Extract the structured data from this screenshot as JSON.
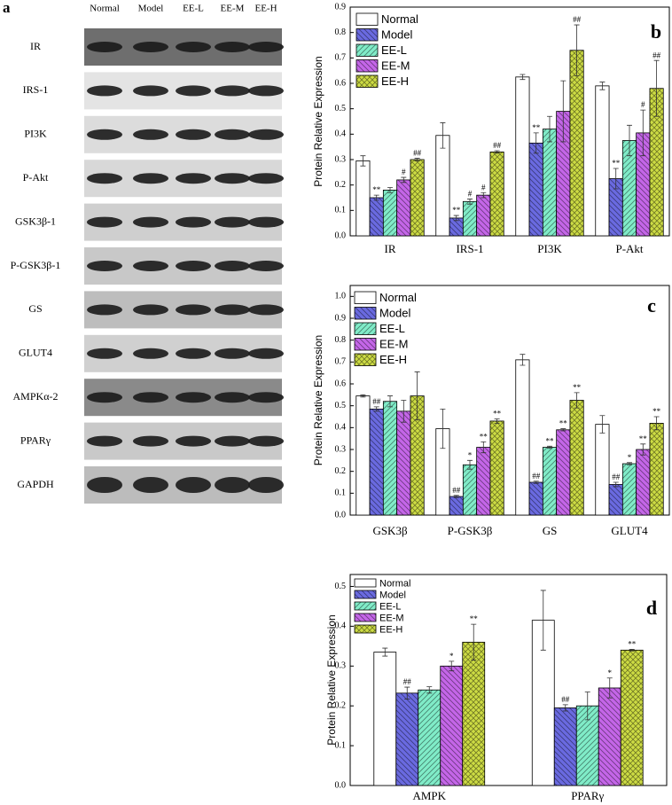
{
  "blot": {
    "label": "a",
    "lanes": [
      "Normal",
      "Model",
      "EE-L",
      "EE-M",
      "EE-H"
    ],
    "rows": [
      "IR",
      "IRS-1",
      "PI3K",
      "P-Akt",
      "GSK3β-1",
      "P-GSK3β-1",
      "GS",
      "GLUT4",
      "AMPKα-2",
      "PPARγ",
      "GAPDH"
    ]
  },
  "chart_data": [
    {
      "type": "bar",
      "panel_label": "b",
      "ylabel": "Protein Relative Expression",
      "legend": "upper left",
      "categories": [
        "IR",
        "IRS-1",
        "PI3K",
        "P-Akt"
      ],
      "ylim": [
        0,
        0.9
      ],
      "yticks": [
        {
          "value": 0,
          "label": "0.0"
        },
        0.1,
        0.2,
        0.3,
        0.4,
        0.5,
        0.6,
        0.7,
        0.8,
        0.9
      ],
      "series": [
        {
          "name": "Normal",
          "color": "#ffffff",
          "hatch": "none",
          "values": [
            0.295,
            0.395,
            0.625,
            0.59
          ],
          "errors": [
            0.02,
            0.05,
            0.01,
            0.015
          ]
        },
        {
          "name": "Model",
          "color": "#6a6ae0",
          "hatch": "back",
          "values": [
            0.15,
            0.07,
            0.365,
            0.225
          ],
          "errors": [
            0.01,
            0.01,
            0.04,
            0.04
          ],
          "annotations": [
            "**",
            "**",
            "**",
            "**"
          ]
        },
        {
          "name": "EE-L",
          "color": "#80ecc8",
          "hatch": "forward",
          "values": [
            0.18,
            0.135,
            0.42,
            0.375
          ],
          "errors": [
            0.01,
            0.01,
            0.05,
            0.06
          ],
          "annotations": [
            null,
            "#",
            null,
            null
          ]
        },
        {
          "name": "EE-M",
          "color": "#c466e8",
          "hatch": "back",
          "values": [
            0.22,
            0.16,
            0.49,
            0.405
          ],
          "errors": [
            0.01,
            0.01,
            0.12,
            0.09
          ],
          "annotations": [
            "#",
            "#",
            null,
            "#"
          ]
        },
        {
          "name": "EE-H",
          "color": "#cddc44",
          "hatch": "cross",
          "values": [
            0.3,
            0.33,
            0.73,
            0.58
          ],
          "errors": [
            0.005,
            0.005,
            0.1,
            0.11
          ],
          "annotations": [
            "##",
            "##",
            "##",
            "##"
          ]
        }
      ]
    },
    {
      "type": "bar",
      "panel_label": "c",
      "ylabel": "Protein Relative Expression",
      "legend": "upper left",
      "categories": [
        "GSK3β",
        "P-GSK3β",
        "GS",
        "GLUT4"
      ],
      "ylim": [
        0,
        1.05
      ],
      "yticks": [
        {
          "value": 0,
          "label": "0.0"
        },
        0.1,
        0.2,
        0.3,
        0.4,
        0.5,
        0.6,
        0.7,
        0.8,
        0.9,
        {
          "value": 1,
          "label": "1.0"
        }
      ],
      "series": [
        {
          "name": "Normal",
          "color": "#ffffff",
          "hatch": "none",
          "values": [
            0.545,
            0.395,
            0.71,
            0.415
          ],
          "errors": [
            0.005,
            0.09,
            0.025,
            0.04
          ]
        },
        {
          "name": "Model",
          "color": "#6a6ae0",
          "hatch": "back",
          "values": [
            0.485,
            0.085,
            0.15,
            0.14
          ],
          "errors": [
            0.01,
            0.005,
            0.005,
            0.01
          ],
          "annotations": [
            "##",
            "##",
            "##",
            "##"
          ]
        },
        {
          "name": "EE-L",
          "color": "#80ecc8",
          "hatch": "forward",
          "values": [
            0.52,
            0.23,
            0.31,
            0.235
          ],
          "errors": [
            0.025,
            0.02,
            0.005,
            0.005
          ],
          "annotations": [
            null,
            "*",
            "**",
            "*"
          ]
        },
        {
          "name": "EE-M",
          "color": "#c466e8",
          "hatch": "back",
          "values": [
            0.475,
            0.31,
            0.39,
            0.3
          ],
          "errors": [
            0.05,
            0.025,
            0.005,
            0.025
          ],
          "annotations": [
            null,
            "**",
            "**",
            "**"
          ]
        },
        {
          "name": "EE-H",
          "color": "#cddc44",
          "hatch": "cross",
          "values": [
            0.545,
            0.43,
            0.525,
            0.42
          ],
          "errors": [
            0.11,
            0.01,
            0.035,
            0.03
          ],
          "annotations": [
            null,
            "**",
            "**",
            "**"
          ]
        }
      ]
    },
    {
      "type": "bar",
      "panel_label": "d",
      "ylabel": "Protein Relative Expression",
      "legend": "upper left",
      "categories": [
        "AMPK",
        "PPARγ"
      ],
      "ylim": [
        0,
        0.53
      ],
      "yticks": [
        {
          "value": 0,
          "label": "0.0"
        },
        0.1,
        0.2,
        0.3,
        0.4,
        0.5
      ],
      "series": [
        {
          "name": "Normal",
          "color": "#ffffff",
          "hatch": "none",
          "values": [
            0.335,
            0.415
          ],
          "errors": [
            0.01,
            0.075
          ]
        },
        {
          "name": "Model",
          "color": "#6a6ae0",
          "hatch": "back",
          "values": [
            0.232,
            0.195
          ],
          "errors": [
            0.015,
            0.008
          ],
          "annotations": [
            "##",
            "##"
          ]
        },
        {
          "name": "EE-L",
          "color": "#80ecc8",
          "hatch": "forward",
          "values": [
            0.24,
            0.2
          ],
          "errors": [
            0.008,
            0.035
          ]
        },
        {
          "name": "EE-M",
          "color": "#c466e8",
          "hatch": "back",
          "values": [
            0.3,
            0.245
          ],
          "errors": [
            0.012,
            0.025
          ],
          "annotations": [
            "*",
            "*"
          ]
        },
        {
          "name": "EE-H",
          "color": "#cddc44",
          "hatch": "cross",
          "values": [
            0.36,
            0.34
          ],
          "errors": [
            0.045,
            0.002
          ],
          "annotations": [
            "**",
            "**"
          ]
        }
      ]
    }
  ]
}
